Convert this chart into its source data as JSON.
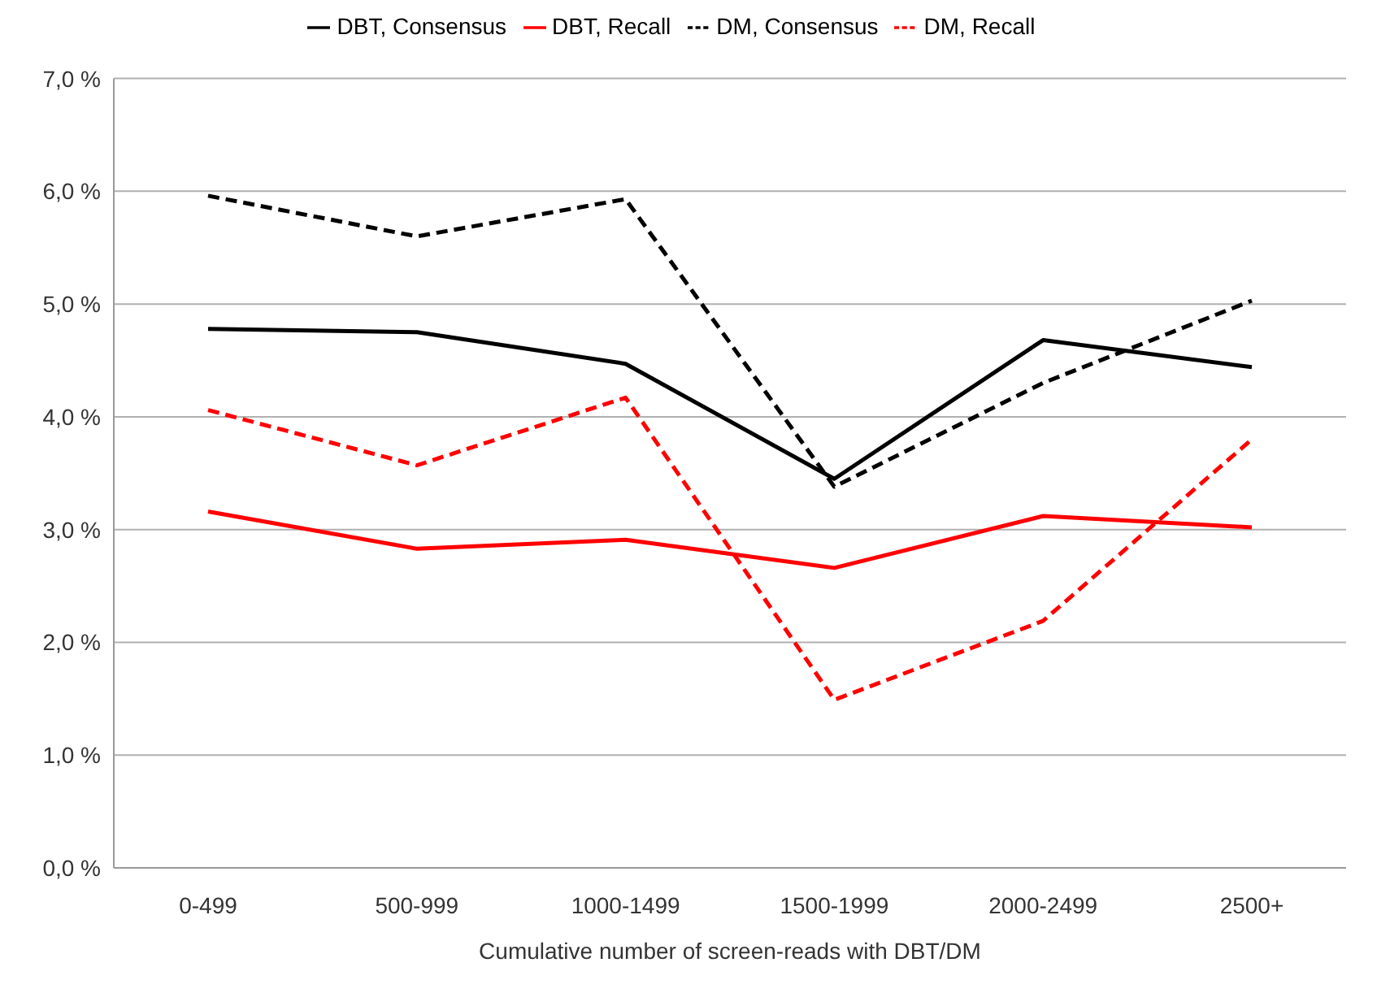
{
  "chart_data": {
    "type": "line",
    "xlabel": "Cumulative number of screen-reads with DBT/DM",
    "categories": [
      "0-499",
      "500-999",
      "1000-1499",
      "1500-1999",
      "2000-2499",
      "2500+"
    ],
    "series": [
      {
        "name": "DBT, Consensus",
        "color": "#000000",
        "line_style": "solid",
        "values": [
          4.78,
          4.75,
          4.47,
          3.45,
          4.68,
          4.44
        ]
      },
      {
        "name": "DBT, Recall",
        "color": "#ff0000",
        "line_style": "solid",
        "values": [
          3.16,
          2.83,
          2.91,
          2.66,
          3.12,
          3.02
        ]
      },
      {
        "name": "DM, Consensus",
        "color": "#000000",
        "line_style": "dashed",
        "values": [
          5.96,
          5.6,
          5.93,
          3.38,
          4.3,
          5.03
        ]
      },
      {
        "name": "DM, Recall",
        "color": "#ff0000",
        "line_style": "dashed",
        "values": [
          4.06,
          3.57,
          4.17,
          1.49,
          2.19,
          3.8
        ]
      }
    ],
    "ylim": [
      0,
      7
    ],
    "yticks": [
      {
        "value": 0,
        "label": "0,0 %"
      },
      {
        "value": 1,
        "label": "1,0 %"
      },
      {
        "value": 2,
        "label": "2,0 %"
      },
      {
        "value": 3,
        "label": "3,0 %"
      },
      {
        "value": 4,
        "label": "4,0 %"
      },
      {
        "value": 5,
        "label": "5,0 %"
      },
      {
        "value": 6,
        "label": "6,0 %"
      },
      {
        "value": 7,
        "label": "7,0 %"
      }
    ],
    "grid": "y",
    "legend": "top",
    "marker": "none"
  }
}
